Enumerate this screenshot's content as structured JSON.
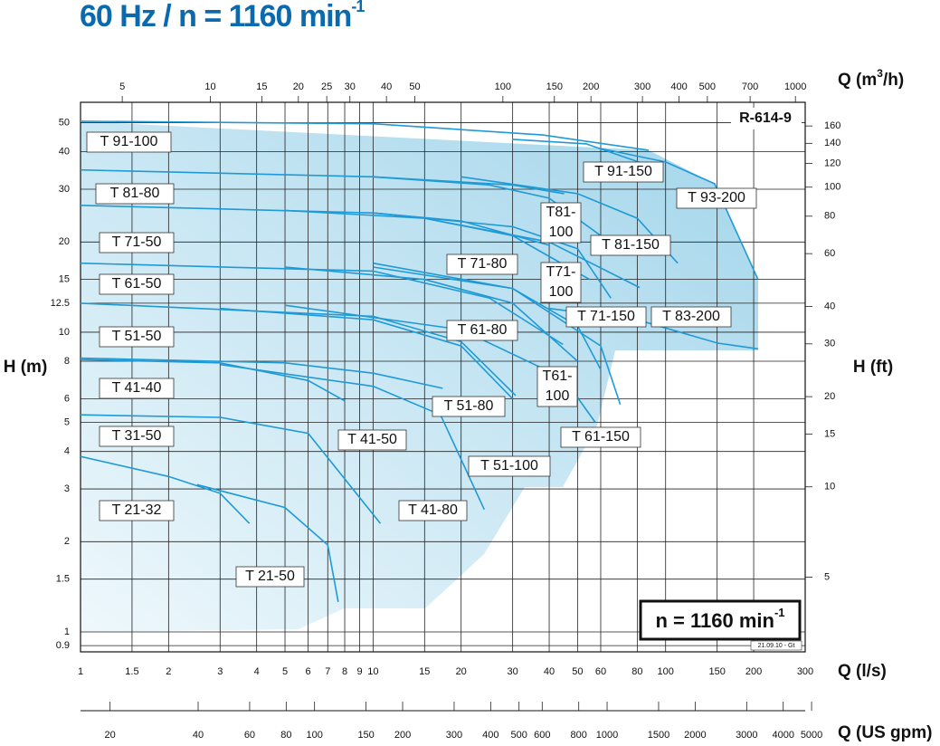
{
  "chart_data": {
    "type": "line",
    "title_main": "60 Hz / n = 1160 min",
    "title_sup": "-1",
    "xlabel": "Q (l/s)",
    "ylabel": "H (m)",
    "x2label_parts": [
      "Q (m",
      "3",
      "/h)"
    ],
    "y2label": "H (ft)",
    "x3label": "Q (US gpm)",
    "chart_code": "R-614-9",
    "speed_main": "n = 1160 min",
    "speed_sup": "-1",
    "footnote": "21.09.10 - Gt",
    "log_scale": true,
    "grid": true,
    "color": "#1f9ad6",
    "xlim": [
      1,
      300
    ],
    "xticks": [
      1,
      1.5,
      2,
      3,
      4,
      5,
      6,
      7,
      8,
      9,
      10,
      15,
      20,
      30,
      40,
      50,
      60,
      80,
      100,
      150,
      200,
      300
    ],
    "ylim": [
      0.858,
      58.5
    ],
    "yticks": [
      0.9,
      1,
      1.5,
      2,
      3,
      4,
      5,
      6,
      8,
      10,
      12.5,
      15,
      20,
      30,
      40,
      50
    ],
    "x2lim": [
      3.6,
      1080
    ],
    "x2ticks": [
      5,
      10,
      15,
      20,
      25,
      30,
      40,
      50,
      100,
      150,
      200,
      300,
      400,
      500,
      700,
      1000
    ],
    "y2lim": [
      2.815,
      191.9
    ],
    "y2ticks": [
      5,
      10,
      15,
      20,
      30,
      40,
      60,
      80,
      100,
      120,
      140,
      160
    ],
    "x3lim": [
      15.85,
      4755
    ],
    "x3ticks": [
      20,
      40,
      60,
      80,
      100,
      150,
      200,
      300,
      400,
      500,
      600,
      800,
      1000,
      1500,
      2000,
      3000,
      4000,
      5000
    ],
    "series": [
      {
        "name": "T 91-100",
        "x": [
          1,
          10,
          38,
          87.5
        ],
        "values": [
          50.6,
          49.6,
          45.5,
          40.5
        ]
      },
      {
        "name": "T 81-80",
        "x": [
          1,
          10,
          30,
          45
        ],
        "values": [
          34.8,
          33,
          31,
          29
        ]
      },
      {
        "name": "T 71-50",
        "x": [
          1,
          10,
          20,
          40
        ],
        "values": [
          26.5,
          25,
          23.5,
          19.5
        ]
      },
      {
        "name": "T 61-50",
        "x": [
          1,
          10,
          25,
          44.6
        ],
        "values": [
          17,
          16,
          13,
          9.1
        ]
      },
      {
        "name": "T 51-50",
        "x": [
          1,
          10,
          20,
          30.7
        ],
        "values": [
          12.5,
          11.3,
          9.3,
          6.15
        ]
      },
      {
        "name": "T 41-40",
        "x": [
          1,
          3,
          6,
          8
        ],
        "values": [
          8.1,
          7.9,
          6.9,
          5.9
        ]
      },
      {
        "name": "T 31-50",
        "x": [
          1,
          3,
          6,
          10.6
        ],
        "values": [
          5.3,
          5.2,
          4.6,
          2.3
        ]
      },
      {
        "name": "T 21-32",
        "x": [
          1,
          2,
          3,
          3.78
        ],
        "values": [
          3.85,
          3.3,
          2.9,
          2.3
        ]
      },
      {
        "name": "T 21-50",
        "x": [
          2.5,
          5,
          7,
          7.6
        ],
        "values": [
          3.1,
          2.6,
          1.95,
          1.26
        ]
      },
      {
        "name": "T 41-50",
        "x": [
          1,
          5,
          10,
          17.3
        ],
        "values": [
          8.2,
          7.9,
          7.3,
          6.5
        ]
      },
      {
        "name": "T 41-80",
        "x": [
          3,
          10,
          17,
          24
        ],
        "values": [
          7.8,
          6.6,
          5.3,
          2.56
        ]
      },
      {
        "name": "T 51-80",
        "x": [
          3,
          10,
          20,
          30
        ],
        "values": [
          12,
          11,
          9,
          6
        ]
      },
      {
        "name": "T 51-100",
        "x": [
          5,
          20,
          45,
          57.5
        ],
        "values": [
          12.3,
          10.2,
          7,
          5
        ]
      },
      {
        "name": "T 61-80",
        "x": [
          5,
          15,
          30,
          50
        ],
        "values": [
          16.5,
          15,
          12.5,
          8
        ]
      },
      {
        "name": "T 71-80",
        "x": [
          5,
          15,
          30,
          55
        ],
        "values": [
          25.5,
          24,
          21,
          15
        ]
      },
      {
        "name": "T81-100",
        "x": [
          10,
          25,
          40,
          60
        ],
        "values": [
          33,
          31,
          28,
          21
        ]
      },
      {
        "name": "T71-100",
        "x": [
          10,
          30,
          50,
          65
        ],
        "values": [
          25,
          22.5,
          19,
          13
        ]
      },
      {
        "name": "T61-100",
        "x": [
          10,
          30,
          50,
          60
        ],
        "values": [
          16.5,
          14,
          10.5,
          7.5
        ]
      },
      {
        "name": "T 61-150",
        "x": [
          10,
          30,
          60,
          70
        ],
        "values": [
          17,
          14,
          9,
          5.74
        ]
      },
      {
        "name": "T 71-150",
        "x": [
          15,
          40,
          81.5
        ],
        "values": [
          24,
          20,
          14.1
        ]
      },
      {
        "name": "T 83-200",
        "x": [
          40,
          80,
          150,
          207
        ],
        "values": [
          12,
          11,
          9.2,
          8.8
        ]
      },
      {
        "name": "T 81-150",
        "x": [
          20,
          50,
          80,
          110
        ],
        "values": [
          33,
          29,
          24,
          17
        ]
      },
      {
        "name": "T 91-150",
        "x": [
          30,
          53.5,
          87.5
        ],
        "values": [
          44,
          42.5,
          36
        ]
      },
      {
        "name": "T 93-200",
        "x": [
          60,
          100,
          147,
          207
        ],
        "values": [
          41,
          37,
          31.3,
          15
        ]
      }
    ]
  }
}
